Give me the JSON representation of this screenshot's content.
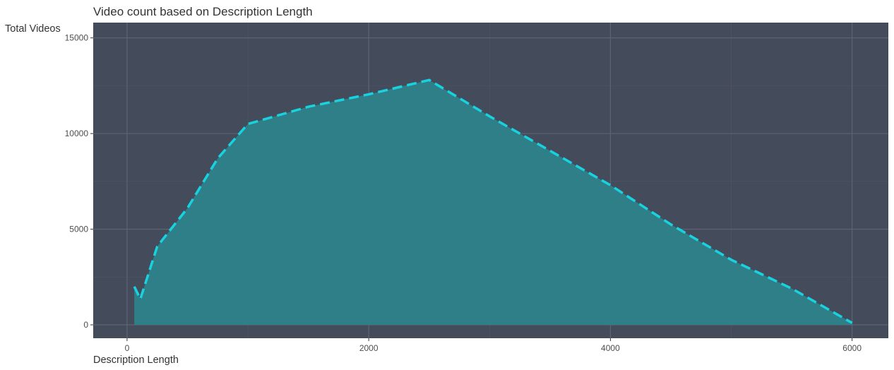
{
  "chart_data": {
    "type": "area",
    "title": "Video count based on Description Length",
    "xlabel": "Description Length",
    "ylabel": "Total Videos",
    "xlim": [
      -280,
      6300
    ],
    "ylim": [
      -700,
      15800
    ],
    "x_ticks": [
      0,
      2000,
      4000,
      6000
    ],
    "x_tick_labels": [
      "0",
      "2000",
      "4000",
      "6000"
    ],
    "y_ticks": [
      0,
      5000,
      10000,
      15000
    ],
    "y_tick_labels": [
      "0",
      "5000",
      "10000",
      "15000"
    ],
    "grid": true,
    "series": [
      {
        "x": [
          60,
          110,
          250,
          500,
          750,
          1000,
          1500,
          2000,
          2500,
          3000,
          3500,
          4000,
          4500,
          5000,
          5500,
          6000
        ],
        "values": [
          2000,
          1350,
          4100,
          6100,
          8700,
          10500,
          11400,
          12050,
          12800,
          10900,
          9100,
          7300,
          5250,
          3400,
          1900,
          100
        ]
      }
    ],
    "colors": {
      "panel_background": "#444b5b",
      "grid_major": "#5d6677",
      "grid_minor": "#4e5566",
      "area_fill": "#2f7f89",
      "line": "#18d2df",
      "text": "#333333",
      "tick_text": "#4d4d4d"
    }
  }
}
